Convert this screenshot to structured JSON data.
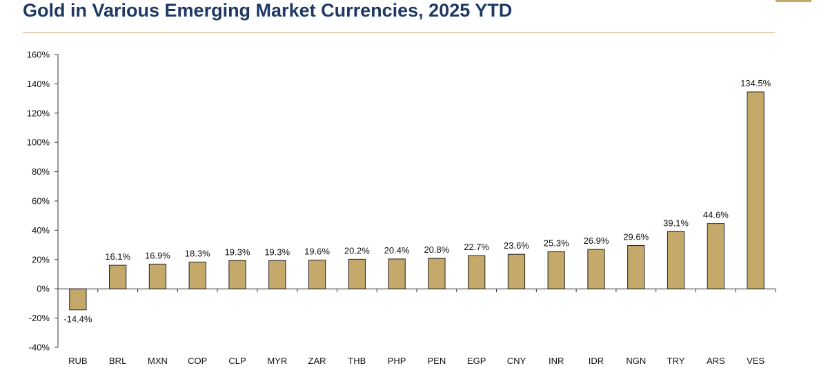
{
  "header": {
    "title": "Gold in Various Emerging Market Currencies, 2025 YTD"
  },
  "colors": {
    "title": "#1f3864",
    "bar_fill": "#c4a96a",
    "bar_stroke": "#222222",
    "rule": "#c9ad73"
  },
  "chart_data": {
    "type": "bar",
    "title": "Gold in Various Emerging Market Currencies, 2025 YTD",
    "xlabel": "",
    "ylabel": "",
    "categories": [
      "RUB",
      "BRL",
      "MXN",
      "COP",
      "CLP",
      "MYR",
      "ZAR",
      "THB",
      "PHP",
      "PEN",
      "EGP",
      "CNY",
      "INR",
      "IDR",
      "NGN",
      "TRY",
      "ARS",
      "VES"
    ],
    "values": [
      -14.4,
      16.1,
      16.9,
      18.3,
      19.3,
      19.3,
      19.6,
      20.2,
      20.4,
      20.8,
      22.7,
      23.6,
      25.3,
      26.9,
      29.6,
      39.1,
      44.6,
      134.5
    ],
    "data_labels": [
      "-14.4%",
      "16.1%",
      "16.9%",
      "18.3%",
      "19.3%",
      "19.3%",
      "19.6%",
      "20.2%",
      "20.4%",
      "20.8%",
      "22.7%",
      "23.6%",
      "25.3%",
      "26.9%",
      "29.6%",
      "39.1%",
      "44.6%",
      "134.5%"
    ],
    "ylim": [
      -40,
      160
    ],
    "yticks": [
      -40,
      -20,
      0,
      20,
      40,
      60,
      80,
      100,
      120,
      140,
      160
    ],
    "ytick_labels": [
      "-40%",
      "-20%",
      "0%",
      "20%",
      "40%",
      "60%",
      "80%",
      "100%",
      "120%",
      "140%",
      "160%"
    ],
    "grid": false,
    "legend": "none"
  }
}
